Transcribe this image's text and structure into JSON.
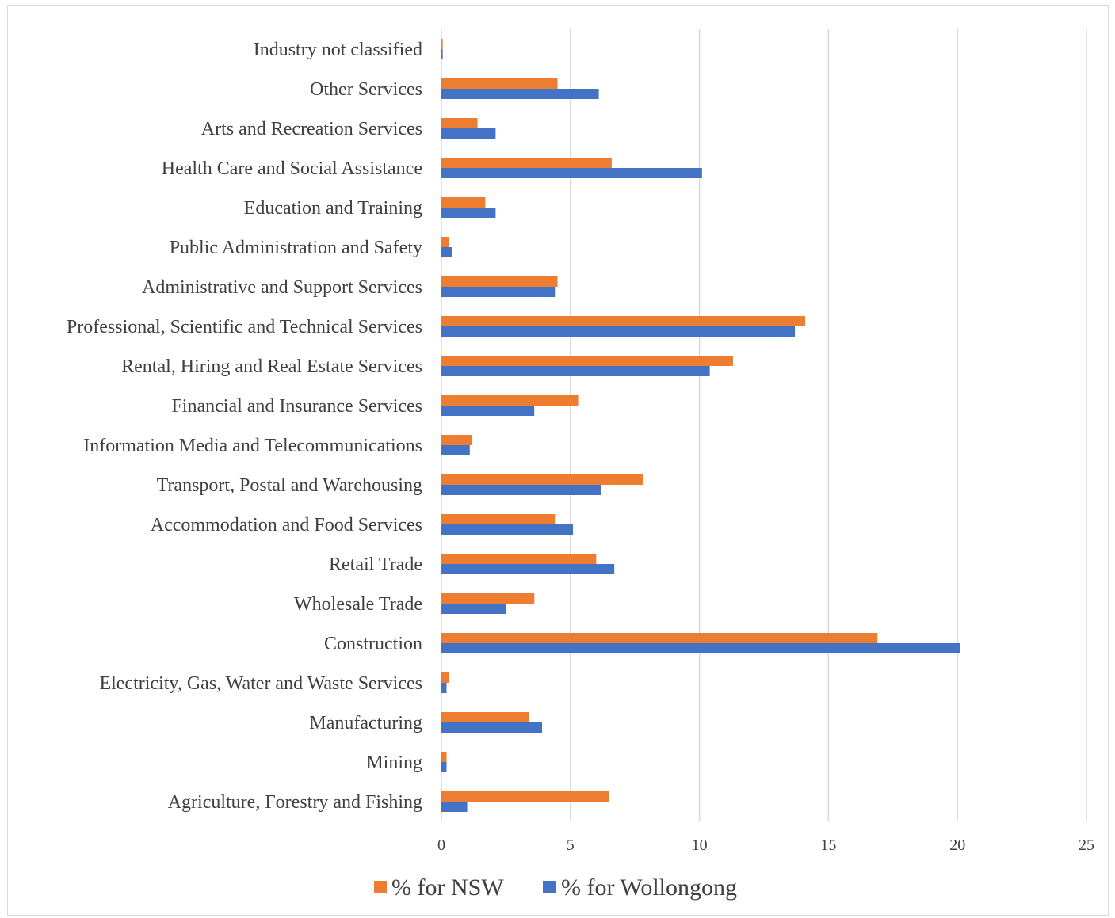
{
  "chart_data": {
    "type": "bar",
    "orientation": "horizontal",
    "categories": [
      "Industry not classified",
      "Other Services",
      "Arts and Recreation Services",
      "Health Care and Social Assistance",
      "Education and Training",
      "Public Administration and Safety",
      "Administrative and Support Services",
      "Professional, Scientific and Technical Services",
      "Rental, Hiring and Real Estate Services",
      "Financial and Insurance Services",
      "Information Media and Telecommunications",
      "Transport, Postal and Warehousing",
      "Accommodation and Food Services",
      "Retail Trade",
      "Wholesale Trade",
      "Construction",
      "Electricity, Gas, Water and Waste Services",
      "Manufacturing",
      "Mining",
      "Agriculture, Forestry and Fishing"
    ],
    "series": [
      {
        "name": "% for NSW",
        "color": "#ed7d31",
        "values": [
          0.05,
          4.5,
          1.4,
          6.6,
          1.7,
          0.3,
          4.5,
          14.1,
          11.3,
          5.3,
          1.2,
          7.8,
          4.4,
          6.0,
          3.6,
          16.9,
          0.3,
          3.4,
          0.2,
          6.5
        ]
      },
      {
        "name": "% for Wollongong",
        "color": "#4472c4",
        "values": [
          0.05,
          6.1,
          2.1,
          10.1,
          2.1,
          0.4,
          4.4,
          13.7,
          10.4,
          3.6,
          1.1,
          6.2,
          5.1,
          6.7,
          2.5,
          20.1,
          0.2,
          3.9,
          0.2,
          1.0
        ]
      }
    ],
    "xlim": [
      0,
      25
    ],
    "xticks": [
      0,
      5,
      10,
      15,
      20,
      25
    ],
    "grid": "vertical",
    "legend_position": "bottom",
    "title": "",
    "xlabel": "",
    "ylabel": ""
  }
}
